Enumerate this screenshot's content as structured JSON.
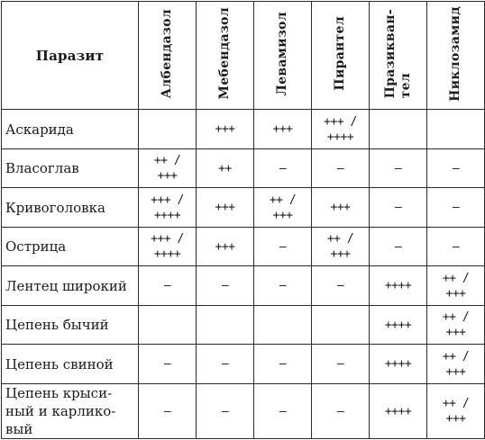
{
  "table": {
    "parasite_header": "Паразит",
    "drugs": [
      {
        "l1": "Албендазол",
        "l2": ""
      },
      {
        "l1": "Мебендазол",
        "l2": ""
      },
      {
        "l1": "Левамизол",
        "l2": ""
      },
      {
        "l1": "Пирантел",
        "l2": ""
      },
      {
        "l1": "Празиквaн-",
        "l2": "тел"
      },
      {
        "l1": "Никлозамид",
        "l2": ""
      }
    ],
    "rows": [
      {
        "name": "Аскарида",
        "values": [
          "",
          "+++",
          "+++",
          "+++ /\n++++",
          "",
          ""
        ]
      },
      {
        "name": "Власоглав",
        "values": [
          "++ /\n+++",
          "++",
          "–",
          "–",
          "–",
          "–"
        ]
      },
      {
        "name": "Кривоголовка",
        "values": [
          "+++ /\n++++",
          "+++",
          "++ /\n+++",
          "+++",
          "–",
          "–"
        ]
      },
      {
        "name": "Острица",
        "values": [
          "+++ /\n++++",
          "+++",
          "—",
          "++ /\n+++",
          "–",
          "–"
        ]
      },
      {
        "name": "Лентец широкий",
        "values": [
          "–",
          "–",
          "–",
          "–",
          "++++",
          "++ /\n+++"
        ]
      },
      {
        "name": "Цепень бычий",
        "values": [
          "",
          "",
          "",
          "",
          "++++",
          "++ /\n+++"
        ]
      },
      {
        "name": "Цепень свиной",
        "values": [
          "–",
          "–",
          "–",
          "–",
          "++++",
          "++ /\n+++"
        ]
      },
      {
        "name": "Цепень крысиный и карликовый",
        "name_lines": [
          "Цепень крыси-",
          "ный и карлико-",
          "вый"
        ],
        "values": [
          "–",
          "–",
          "–",
          "–",
          "++++",
          "++ /\n+++"
        ]
      }
    ]
  }
}
